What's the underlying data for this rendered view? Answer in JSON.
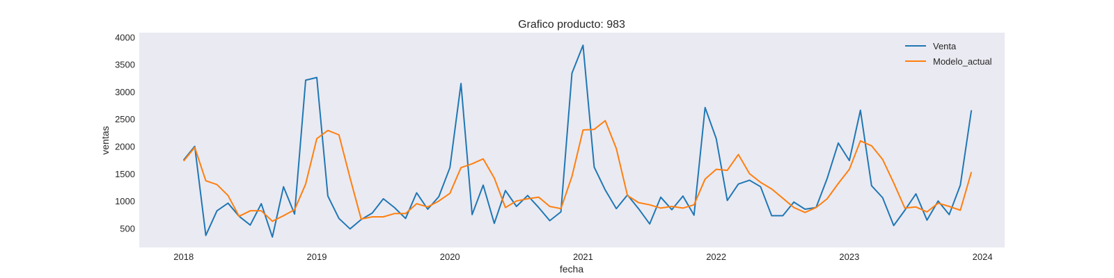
{
  "chart_data": {
    "type": "line",
    "title": "Grafico producto: 983",
    "xlabel": "fecha",
    "ylabel": "ventas",
    "x_start": "2018-01",
    "x_frequency": "monthly",
    "xlim": [
      "2017-09",
      "2024-03"
    ],
    "ylim": [
      150,
      4080
    ],
    "x_ticks": [
      "2018",
      "2019",
      "2020",
      "2021",
      "2022",
      "2023",
      "2024"
    ],
    "y_ticks": [
      500,
      1000,
      1500,
      2000,
      2500,
      3000,
      3500,
      4000
    ],
    "grid": false,
    "legend_position": "top-right",
    "background_color": "#eaeaf2",
    "series": [
      {
        "name": "Venta",
        "color": "#1f77b4",
        "values": [
          1750,
          2000,
          370,
          820,
          960,
          720,
          560,
          950,
          340,
          1260,
          760,
          3210,
          3260,
          1090,
          680,
          490,
          660,
          780,
          1040,
          880,
          680,
          1150,
          850,
          1080,
          1610,
          3150,
          750,
          1290,
          590,
          1190,
          900,
          1100,
          880,
          640,
          800,
          3340,
          3850,
          1620,
          1200,
          860,
          1110,
          860,
          580,
          1070,
          840,
          1090,
          740,
          2710,
          2140,
          1010,
          1310,
          1380,
          1260,
          730,
          730,
          980,
          850,
          880,
          1410,
          2060,
          1740,
          2660,
          1280,
          1060,
          550,
          830,
          1130,
          650,
          1000,
          750,
          1290,
          2660
        ]
      },
      {
        "name": "Modelo_actual",
        "color": "#ff7f0e",
        "values": [
          1730,
          1980,
          1370,
          1300,
          1100,
          720,
          820,
          820,
          630,
          730,
          840,
          1310,
          2140,
          2290,
          2210,
          1420,
          670,
          710,
          710,
          770,
          770,
          950,
          890,
          1000,
          1140,
          1610,
          1680,
          1770,
          1420,
          880,
          1000,
          1040,
          1070,
          900,
          860,
          1450,
          2300,
          2310,
          2470,
          1960,
          1100,
          970,
          930,
          870,
          900,
          870,
          930,
          1400,
          1580,
          1560,
          1850,
          1500,
          1340,
          1220,
          1050,
          880,
          790,
          880,
          1040,
          1320,
          1580,
          2100,
          2010,
          1760,
          1330,
          870,
          890,
          800,
          960,
          900,
          830,
          1530
        ]
      }
    ]
  }
}
